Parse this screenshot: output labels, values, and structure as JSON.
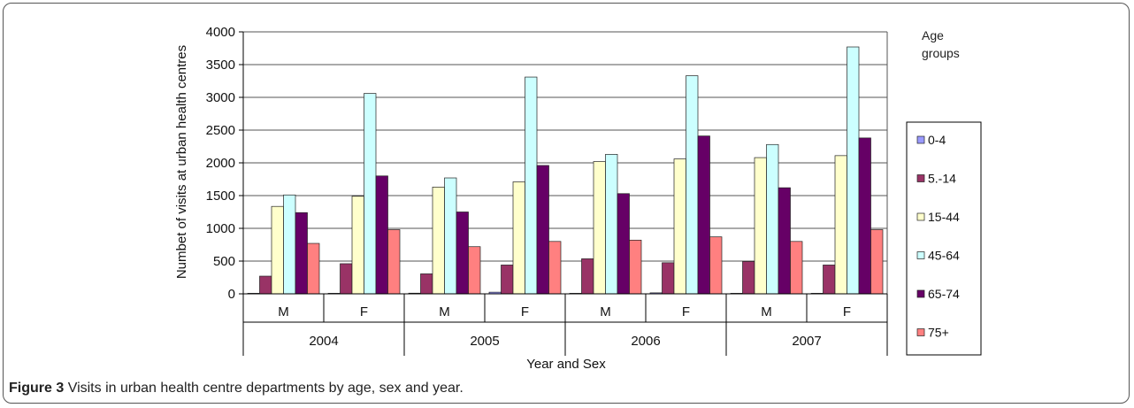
{
  "caption": {
    "label": "Figure 3",
    "text": "Visits in urban health centre departments by age, sex and year."
  },
  "chart_data": {
    "type": "bar",
    "title": "",
    "xlabel": "Year and Sex",
    "ylabel": "Numbet of visits at urban health centres",
    "ylim": [
      0,
      4000
    ],
    "yticks": [
      0,
      500,
      1000,
      1500,
      2000,
      2500,
      3000,
      3500,
      4000
    ],
    "grid": true,
    "legend_placement": "right",
    "legend_title_line1": "Age",
    "legend_title_line2": "groups",
    "categories": [
      "M",
      "F",
      "M",
      "F",
      "M",
      "F",
      "M",
      "F"
    ],
    "groups": [
      "2004",
      "2005",
      "2006",
      "2007"
    ],
    "series": [
      {
        "name": "0-4",
        "color": "#9999ff",
        "values": [
          5,
          5,
          10,
          25,
          5,
          15,
          5,
          5
        ]
      },
      {
        "name": "5.-14",
        "color": "#993366",
        "values": [
          270,
          460,
          305,
          440,
          535,
          475,
          495,
          440
        ]
      },
      {
        "name": "15-44",
        "color": "#ffffcc",
        "values": [
          1335,
          1490,
          1630,
          1710,
          2020,
          2060,
          2080,
          2110
        ]
      },
      {
        "name": "45-64",
        "color": "#ccffff",
        "values": [
          1510,
          3060,
          1770,
          3310,
          2130,
          3330,
          2280,
          3770
        ]
      },
      {
        "name": "65-74",
        "color": "#660066",
        "values": [
          1240,
          1800,
          1250,
          1960,
          1530,
          2410,
          1620,
          2380
        ]
      },
      {
        "name": "75+",
        "color": "#ff8080",
        "values": [
          770,
          980,
          720,
          800,
          820,
          870,
          800,
          980
        ]
      }
    ]
  }
}
